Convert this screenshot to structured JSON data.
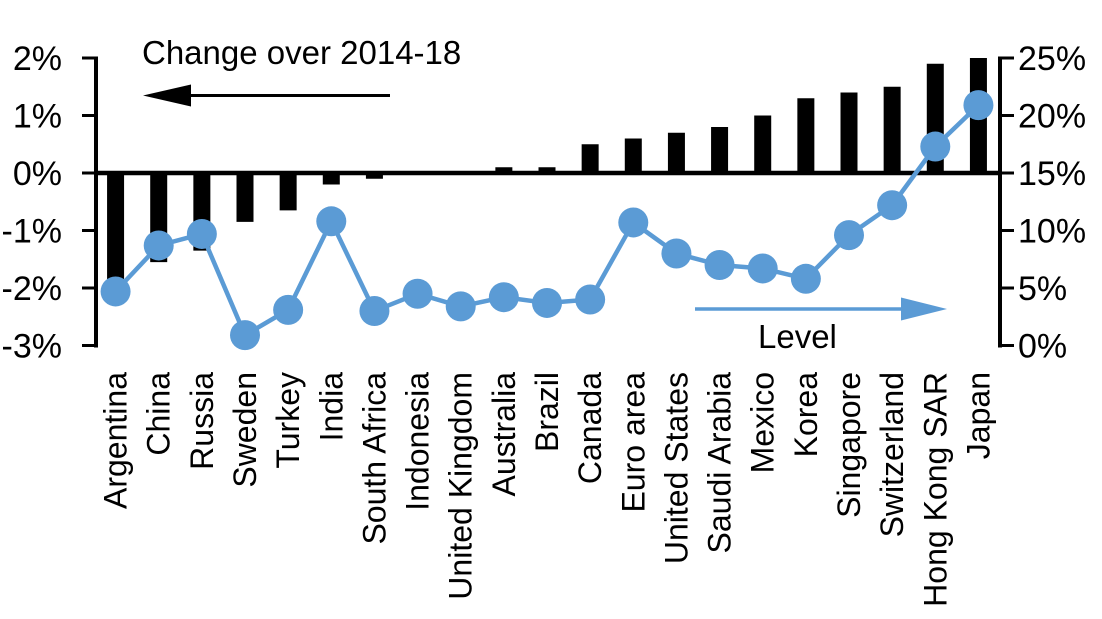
{
  "chart_data": {
    "type": "combo",
    "description": "Dual-axis chart: black bars show change over 2014-18 (left axis), blue line with markers shows level (right axis)",
    "categories": [
      "Argentina",
      "China",
      "Russia",
      "Sweden",
      "Turkey",
      "India",
      "South Africa",
      "Indonesia",
      "United Kingdom",
      "Australia",
      "Brazil",
      "Canada",
      "Euro area",
      "United States",
      "Saudi Arabia",
      "Mexico",
      "Korea",
      "Singapore",
      "Switzerland",
      "Hong Kong SAR",
      "Japan"
    ],
    "series": [
      {
        "name": "Change over 2014-18",
        "type": "bar",
        "axis": "left",
        "unit": "%",
        "color": "#000000",
        "values": [
          -1.85,
          -1.55,
          -1.35,
          -0.85,
          -0.65,
          -0.2,
          -0.1,
          0,
          0,
          0.1,
          0.1,
          0.5,
          0.6,
          0.7,
          0.8,
          1.0,
          1.3,
          1.4,
          1.5,
          1.9,
          2.0
        ]
      },
      {
        "name": "Level",
        "type": "line",
        "axis": "right",
        "unit": "%",
        "color": "#5B9BD5",
        "values": [
          4.7,
          8.7,
          9.7,
          0.9,
          3.1,
          10.8,
          3.0,
          4.5,
          3.4,
          4.2,
          3.7,
          4.0,
          10.7,
          8.0,
          7.0,
          6.7,
          5.8,
          9.6,
          12.2,
          17.3,
          20.9
        ]
      }
    ],
    "left_axis": {
      "min": -3,
      "max": 2,
      "tick_step": 1,
      "tick_labels": [
        "2%",
        "1%",
        "0%",
        "-1%",
        "-2%",
        "-3%"
      ]
    },
    "right_axis": {
      "min": 0,
      "max": 25,
      "tick_step": 5,
      "tick_labels": [
        "25%",
        "20%",
        "15%",
        "10%",
        "5%",
        "0%"
      ]
    },
    "annotations": {
      "bar_series_label": "Change over 2014-18",
      "line_series_label": "Level"
    },
    "grid": false,
    "legend_position": "in-plot annotations with arrows",
    "colors": {
      "bar": "#000000",
      "line": "#5B9BD5",
      "axis": "#000000",
      "background": "#FFFFFF"
    }
  }
}
